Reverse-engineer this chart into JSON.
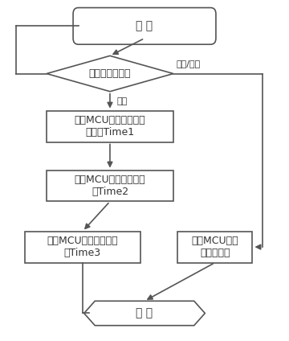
{
  "bg_color": "#ffffff",
  "box_color": "#ffffff",
  "box_edge": "#555555",
  "text_color": "#333333",
  "arrow_color": "#555555",
  "font_size": 9,
  "label_standby": "待机/关机",
  "label_on": "开机",
  "start_text": "开 始",
  "end_text": "结 束",
  "decision_text": "电器开机状态？",
  "box1_text": "主控MCU开启温度传感\n器预热Time1",
  "box2_text": "主控MCU控制传感器采\n样Time2",
  "box3_text": "主控MCU控制传感器关\n闭Time3",
  "box4_text": "主控MCU控制\n传感器关闭"
}
